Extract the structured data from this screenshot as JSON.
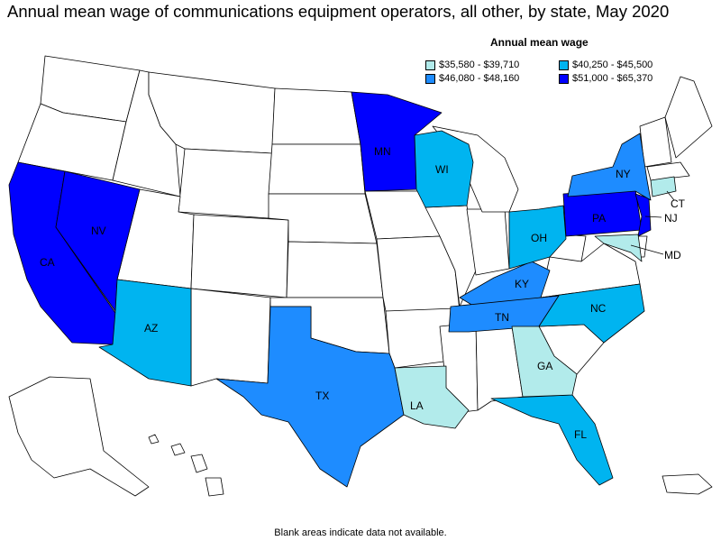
{
  "title": "Annual mean wage of communications equipment operators, all other, by state, May 2020",
  "legend": {
    "title": "Annual mean wage",
    "items": [
      {
        "label": "$35,580 - $39,710",
        "color": "#b2ebeb"
      },
      {
        "label": "$40,250 - $45,500",
        "color": "#00b4f0"
      },
      {
        "label": "$46,080 - $48,160",
        "color": "#1e8cff"
      },
      {
        "label": "$51,000 - $65,370",
        "color": "#0000ff"
      }
    ]
  },
  "footnote": "Blank areas indicate data not available.",
  "states": {
    "CA": {
      "label": "CA",
      "tier": 3
    },
    "NV": {
      "label": "NV",
      "tier": 3
    },
    "MN": {
      "label": "MN",
      "tier": 3
    },
    "PA": {
      "label": "PA",
      "tier": 3
    },
    "NJ": {
      "label": "NJ",
      "tier": 3
    },
    "NY": {
      "label": "NY",
      "tier": 2
    },
    "KY": {
      "label": "KY",
      "tier": 2
    },
    "TN": {
      "label": "TN",
      "tier": 2
    },
    "TX": {
      "label": "TX",
      "tier": 2
    },
    "WI": {
      "label": "WI",
      "tier": 1
    },
    "OH": {
      "label": "OH",
      "tier": 1
    },
    "NC": {
      "label": "NC",
      "tier": 1
    },
    "AZ": {
      "label": "AZ",
      "tier": 1
    },
    "FL": {
      "label": "FL",
      "tier": 1
    },
    "CT": {
      "label": "CT",
      "tier": 0
    },
    "MD": {
      "label": "MD",
      "tier": 0
    },
    "GA": {
      "label": "GA",
      "tier": 0
    },
    "LA": {
      "label": "LA",
      "tier": 0
    }
  }
}
